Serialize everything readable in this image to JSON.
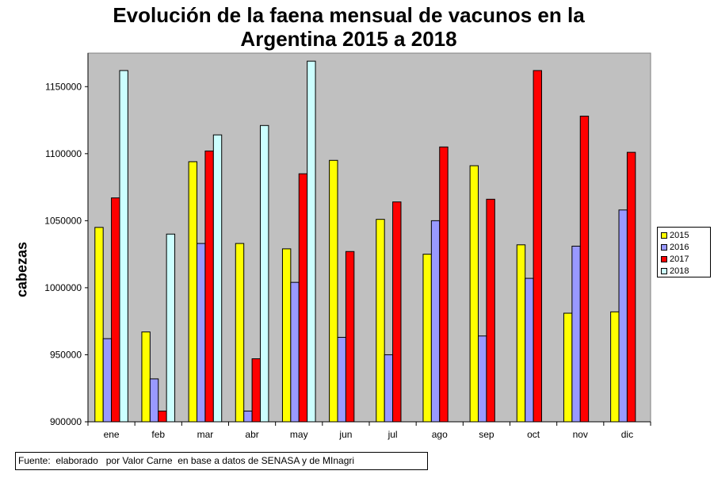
{
  "chart_data": {
    "type": "bar",
    "title_line1": "Evolución de la faena mensual de vacunos en la",
    "title_line2": "Argentina 2015 a 2018",
    "ylabel": "cabezas",
    "xlabel": "",
    "categories": [
      "ene",
      "feb",
      "mar",
      "abr",
      "may",
      "jun",
      "jul",
      "ago",
      "sep",
      "oct",
      "nov",
      "dic"
    ],
    "ylim": [
      900000,
      1175000
    ],
    "yticks": [
      900000,
      950000,
      1000000,
      1050000,
      1100000,
      1150000
    ],
    "grid": false,
    "legend_position": "right",
    "plot_background": "#c0c0c0",
    "series": [
      {
        "name": "2015",
        "color": "#ffff00",
        "values": [
          1045000,
          967000,
          1094000,
          1033000,
          1029000,
          1095000,
          1051000,
          1025000,
          1091000,
          1032000,
          981000,
          982000
        ]
      },
      {
        "name": "2016",
        "color": "#9999ff",
        "values": [
          962000,
          932000,
          1033000,
          908000,
          1004000,
          963000,
          950000,
          1050000,
          964000,
          1007000,
          1031000,
          1058000
        ]
      },
      {
        "name": "2017",
        "color": "#ff0000",
        "values": [
          1067000,
          908000,
          1102000,
          947000,
          1085000,
          1027000,
          1064000,
          1105000,
          1066000,
          1162000,
          1128000,
          1101000
        ]
      },
      {
        "name": "2018",
        "color": "#ccffff",
        "values": [
          1162000,
          1040000,
          1114000,
          1121000,
          1169000,
          null,
          null,
          null,
          null,
          null,
          null,
          null
        ]
      }
    ]
  },
  "footer": {
    "source": "Fuente:  elaborado   por Valor Carne  en base a datos de SENASA y de MInagri"
  }
}
